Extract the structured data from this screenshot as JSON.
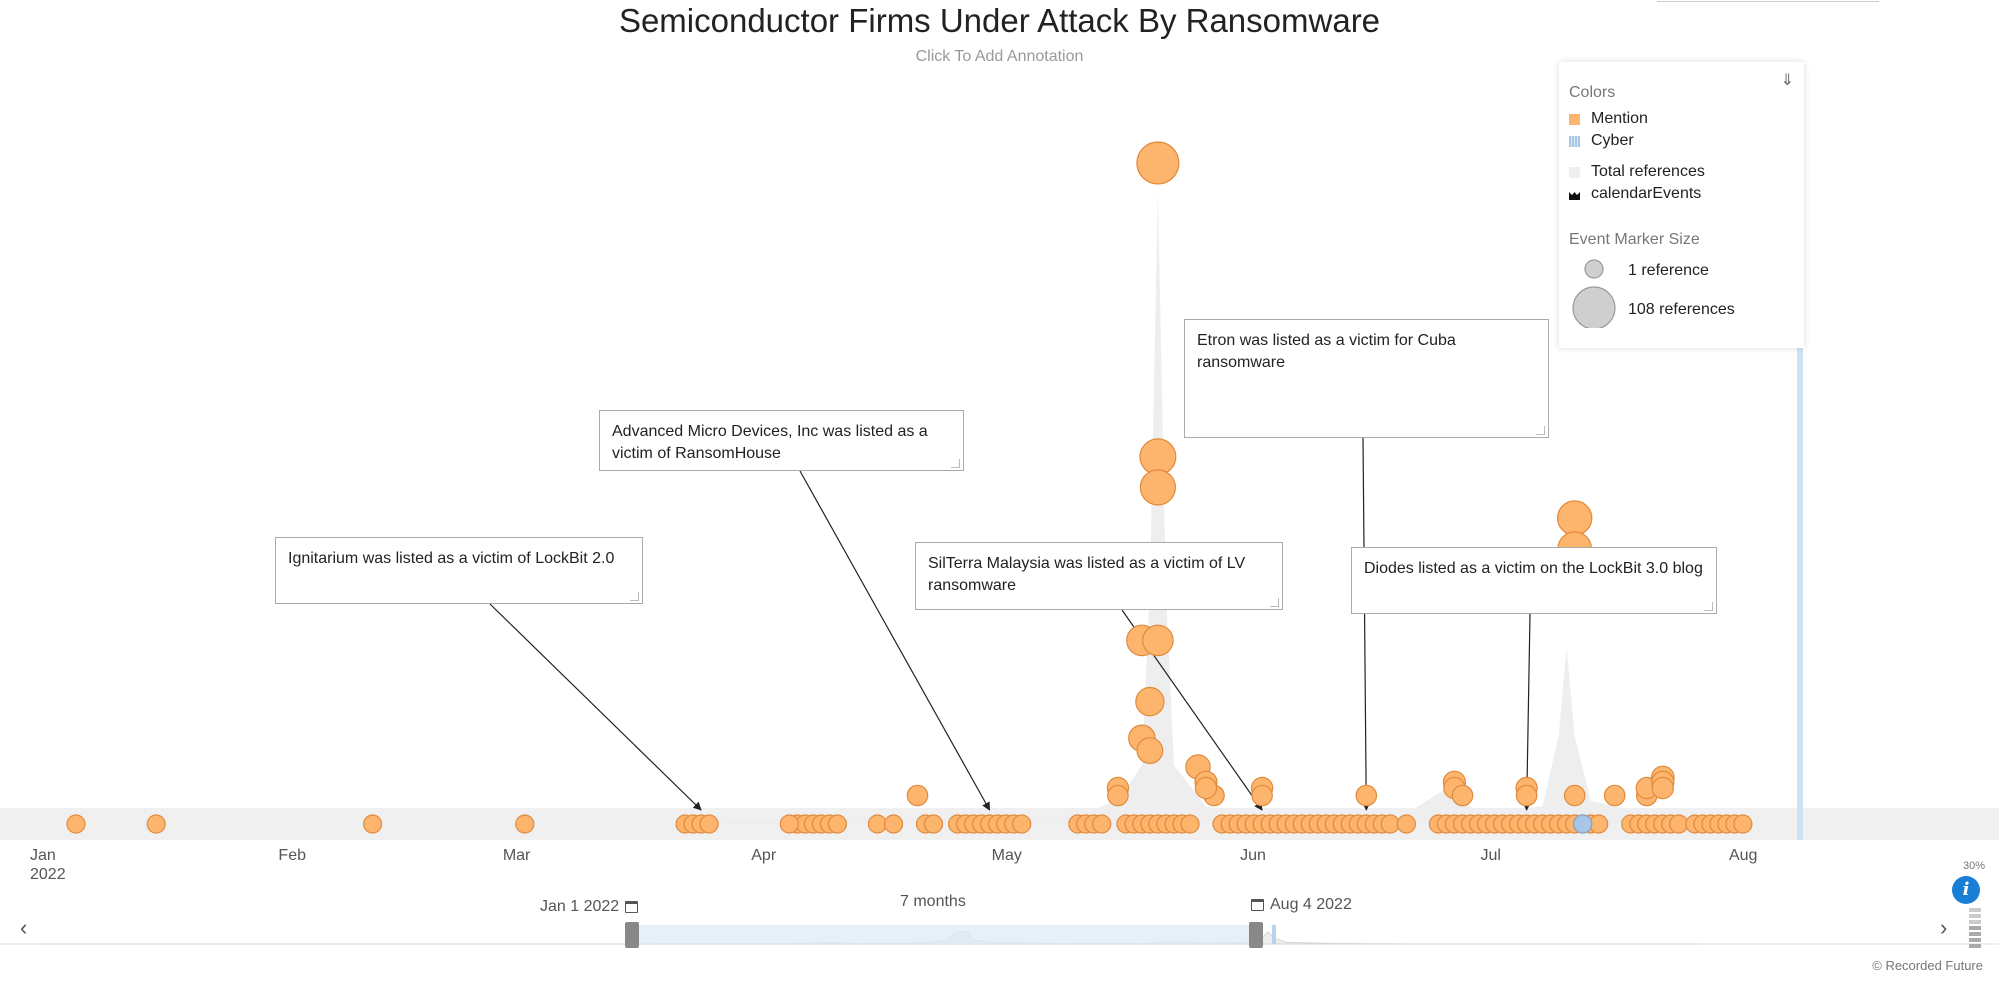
{
  "header": {
    "title": "Semiconductor Firms Under Attack By Ransomware",
    "subtitle": "Click To Add Annotation"
  },
  "legend": {
    "colors_heading": "Colors",
    "items": [
      {
        "label": "Mention",
        "color": "#fdb46c"
      },
      {
        "label": "Cyber",
        "color": "#a9c6e8"
      },
      {
        "label": "Total references",
        "color": "#eeeeee"
      },
      {
        "label": "calendarEvents",
        "color": "#111111"
      }
    ],
    "size_heading": "Event Marker Size",
    "size_min_label": "1 reference",
    "size_max_label": "108 references"
  },
  "annotations": [
    {
      "text": "Ignitarium was listed as a victim of LockBit 2.0"
    },
    {
      "text": "Advanced Micro Devices, Inc was listed as a victim of RansomHouse"
    },
    {
      "text": "SilTerra Malaysia was listed as a victim of LV ransomware"
    },
    {
      "text": "Etron was listed as a victim for Cuba ransomware"
    },
    {
      "text": "Diodes listed as a victim on the LockBit 3.0 blog"
    }
  ],
  "navigator": {
    "start_label": "Jan 1 2022",
    "end_label": "Aug 4 2022",
    "range_label": "7 months",
    "zoom_label": "30%"
  },
  "credit": "© Recorded Future",
  "colors": {
    "mention": "#fdb46c",
    "mention_stroke": "#e08a3c",
    "cyber": "#a9c6e8",
    "area": "#eeeeee",
    "accent": "#1a7fd4"
  },
  "chart_data": {
    "type": "scatter",
    "title": "Semiconductor Firms Under Attack By Ransomware",
    "xlabel": "",
    "ylabel": "",
    "x_range": [
      "2022-01-01",
      "2022-08-04"
    ],
    "x_ticks": [
      {
        "date": "2022-01-01",
        "label": "Jan",
        "sub": "2022"
      },
      {
        "date": "2022-02-01",
        "label": "Feb"
      },
      {
        "date": "2022-03-01",
        "label": "Mar"
      },
      {
        "date": "2022-04-01",
        "label": "Apr"
      },
      {
        "date": "2022-05-01",
        "label": "May"
      },
      {
        "date": "2022-06-01",
        "label": "Jun"
      },
      {
        "date": "2022-07-01",
        "label": "Jul"
      },
      {
        "date": "2022-08-01",
        "label": "Aug"
      }
    ],
    "total_references": [
      [
        "2022-01-01",
        0
      ],
      [
        "2022-03-20",
        0
      ],
      [
        "2022-04-05",
        1
      ],
      [
        "2022-04-20",
        1
      ],
      [
        "2022-04-28",
        3
      ],
      [
        "2022-05-02",
        1
      ],
      [
        "2022-05-10",
        2
      ],
      [
        "2022-05-14",
        4
      ],
      [
        "2022-05-17",
        10
      ],
      [
        "2022-05-18",
        40
      ],
      [
        "2022-05-19",
        108
      ],
      [
        "2022-05-20",
        40
      ],
      [
        "2022-05-21",
        10
      ],
      [
        "2022-05-25",
        3
      ],
      [
        "2022-06-01",
        2
      ],
      [
        "2022-06-05",
        1
      ],
      [
        "2022-06-13",
        2
      ],
      [
        "2022-06-18",
        1
      ],
      [
        "2022-06-24",
        6
      ],
      [
        "2022-06-28",
        2
      ],
      [
        "2022-07-06",
        3
      ],
      [
        "2022-07-08",
        15
      ],
      [
        "2022-07-09",
        30
      ],
      [
        "2022-07-10",
        15
      ],
      [
        "2022-07-12",
        4
      ],
      [
        "2022-07-18",
        2
      ],
      [
        "2022-07-23",
        1
      ],
      [
        "2022-08-04",
        0
      ]
    ],
    "series": [
      {
        "name": "Mention",
        "events": [
          [
            "2022-01-04",
            1
          ],
          [
            "2022-01-14",
            1
          ],
          [
            "2022-02-10",
            1
          ],
          [
            "2022-03-01",
            1
          ],
          [
            "2022-03-21",
            1
          ],
          [
            "2022-03-22",
            1
          ],
          [
            "2022-03-23",
            1
          ],
          [
            "2022-03-24",
            1
          ],
          [
            "2022-04-04",
            1
          ],
          [
            "2022-04-05",
            1
          ],
          [
            "2022-04-06",
            1
          ],
          [
            "2022-04-07",
            1
          ],
          [
            "2022-04-08",
            1
          ],
          [
            "2022-04-09",
            1
          ],
          [
            "2022-04-14",
            1
          ],
          [
            "2022-04-16",
            1
          ],
          [
            "2022-04-20",
            1
          ],
          [
            "2022-04-21",
            1
          ],
          [
            "2022-04-24",
            1
          ],
          [
            "2022-04-25",
            1
          ],
          [
            "2022-04-26",
            1
          ],
          [
            "2022-04-27",
            1
          ],
          [
            "2022-04-28",
            1
          ],
          [
            "2022-04-29",
            1
          ],
          [
            "2022-04-30",
            1
          ],
          [
            "2022-05-01",
            1
          ],
          [
            "2022-05-02",
            1
          ],
          [
            "2022-05-09",
            1
          ],
          [
            "2022-05-10",
            1
          ],
          [
            "2022-05-11",
            1
          ],
          [
            "2022-05-12",
            1
          ],
          [
            "2022-05-15",
            1
          ],
          [
            "2022-05-16",
            1
          ],
          [
            "2022-05-17",
            1
          ],
          [
            "2022-05-18",
            1
          ],
          [
            "2022-05-19",
            1
          ],
          [
            "2022-05-20",
            1
          ],
          [
            "2022-05-21",
            1
          ],
          [
            "2022-05-22",
            1
          ],
          [
            "2022-05-23",
            1
          ],
          [
            "2022-05-17",
            30
          ],
          [
            "2022-05-18",
            20
          ],
          [
            "2022-05-19",
            30
          ],
          [
            "2022-05-17",
            14
          ],
          [
            "2022-05-18",
            12
          ],
          [
            "2022-05-19",
            108
          ],
          [
            "2022-05-19",
            60
          ],
          [
            "2022-05-19",
            55
          ],
          [
            "2022-05-24",
            8
          ],
          [
            "2022-05-26",
            2
          ],
          [
            "2022-05-27",
            1
          ],
          [
            "2022-05-28",
            1
          ],
          [
            "2022-05-29",
            1
          ],
          [
            "2022-05-30",
            1
          ],
          [
            "2022-05-31",
            1
          ],
          [
            "2022-06-01",
            1
          ],
          [
            "2022-06-02",
            1
          ],
          [
            "2022-06-03",
            1
          ],
          [
            "2022-06-04",
            1
          ],
          [
            "2022-06-05",
            1
          ],
          [
            "2022-06-06",
            1
          ],
          [
            "2022-06-07",
            1
          ],
          [
            "2022-06-08",
            1
          ],
          [
            "2022-06-09",
            1
          ],
          [
            "2022-06-10",
            1
          ],
          [
            "2022-06-11",
            1
          ],
          [
            "2022-06-12",
            1
          ],
          [
            "2022-06-13",
            1
          ],
          [
            "2022-06-14",
            1
          ],
          [
            "2022-06-15",
            1
          ],
          [
            "2022-06-16",
            1
          ],
          [
            "2022-06-17",
            1
          ],
          [
            "2022-06-19",
            1
          ],
          [
            "2022-06-23",
            1
          ],
          [
            "2022-06-24",
            1
          ],
          [
            "2022-06-25",
            1
          ],
          [
            "2022-06-26",
            1
          ],
          [
            "2022-06-27",
            1
          ],
          [
            "2022-06-28",
            1
          ],
          [
            "2022-06-29",
            1
          ],
          [
            "2022-06-30",
            1
          ],
          [
            "2022-07-01",
            1
          ],
          [
            "2022-07-02",
            1
          ],
          [
            "2022-07-03",
            1
          ],
          [
            "2022-07-04",
            1
          ],
          [
            "2022-07-05",
            1
          ],
          [
            "2022-07-06",
            1
          ],
          [
            "2022-07-07",
            1
          ],
          [
            "2022-07-08",
            1
          ],
          [
            "2022-07-09",
            1
          ],
          [
            "2022-07-10",
            1
          ],
          [
            "2022-07-11",
            1
          ],
          [
            "2022-07-12",
            1
          ],
          [
            "2022-07-13",
            1
          ],
          [
            "2022-07-17",
            1
          ],
          [
            "2022-07-18",
            1
          ],
          [
            "2022-07-19",
            1
          ],
          [
            "2022-07-20",
            1
          ],
          [
            "2022-07-21",
            1
          ],
          [
            "2022-07-22",
            1
          ],
          [
            "2022-07-23",
            1
          ],
          [
            "2022-07-25",
            1
          ],
          [
            "2022-07-26",
            1
          ],
          [
            "2022-07-27",
            1
          ],
          [
            "2022-07-28",
            1
          ],
          [
            "2022-07-29",
            1
          ],
          [
            "2022-07-30",
            1
          ],
          [
            "2022-07-31",
            1
          ],
          [
            "2022-05-14",
            3
          ],
          [
            "2022-05-14",
            2
          ],
          [
            "2022-05-25",
            4
          ],
          [
            "2022-05-25",
            3
          ],
          [
            "2022-06-01",
            3
          ],
          [
            "2022-06-01",
            2
          ],
          [
            "2022-06-14",
            2
          ],
          [
            "2022-06-25",
            4
          ],
          [
            "2022-06-25",
            3
          ],
          [
            "2022-06-26",
            2
          ],
          [
            "2022-07-04",
            3
          ],
          [
            "2022-07-04",
            2
          ],
          [
            "2022-07-10",
            2
          ],
          [
            "2022-07-10",
            50
          ],
          [
            "2022-07-10",
            45
          ],
          [
            "2022-07-11",
            1
          ],
          [
            "2022-07-15",
            2
          ],
          [
            "2022-07-19",
            2
          ],
          [
            "2022-07-19",
            3
          ],
          [
            "2022-07-21",
            5
          ],
          [
            "2022-07-21",
            4
          ],
          [
            "2022-07-21",
            3
          ],
          [
            "2022-04-19",
            2
          ],
          [
            "2022-04-03",
            1
          ]
        ]
      },
      {
        "name": "Cyber",
        "events": [
          [
            "2022-07-11",
            1
          ]
        ]
      }
    ]
  }
}
